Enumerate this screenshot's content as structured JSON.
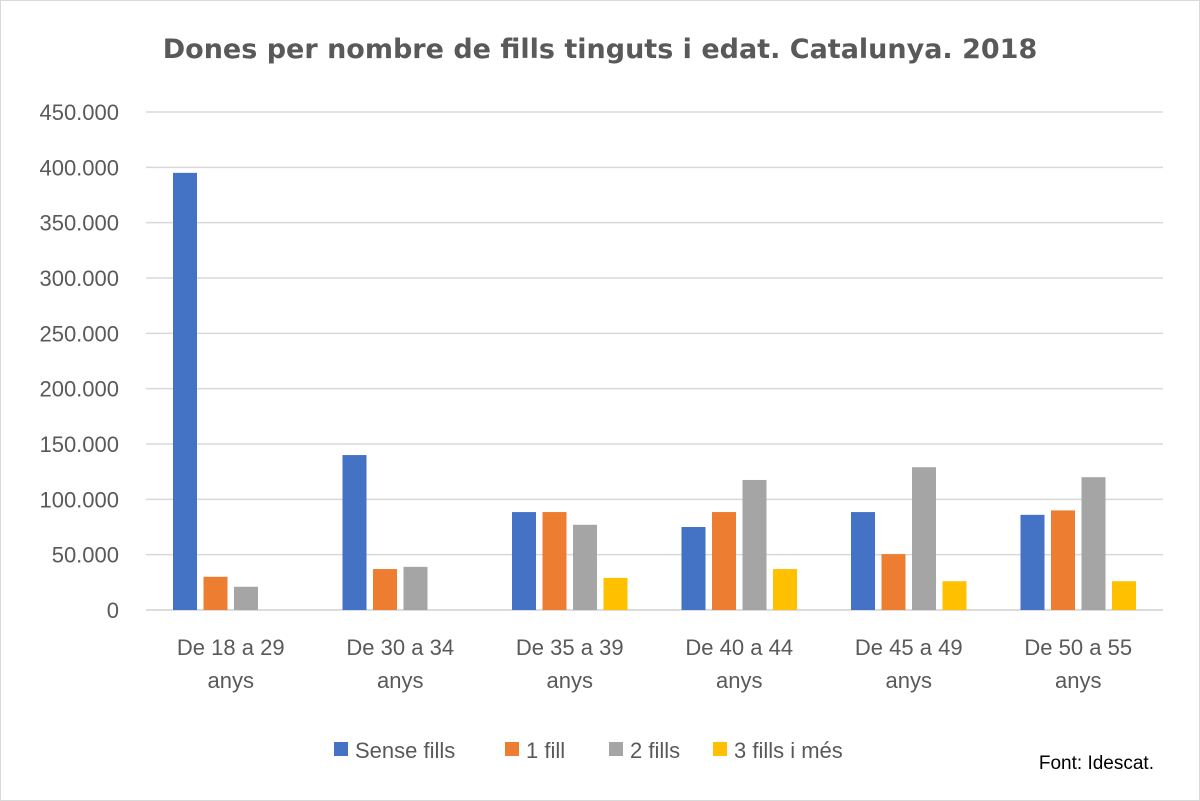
{
  "chart_data": {
    "type": "bar",
    "title": "Dones per nombre de fills tinguts i edat. Catalunya. 2018",
    "xlabel": "",
    "ylabel": "",
    "ylim": [
      0,
      450000
    ],
    "yticks": [
      0,
      50000,
      100000,
      150000,
      200000,
      250000,
      300000,
      350000,
      400000,
      450000
    ],
    "ytick_labels": [
      "0",
      "50.000",
      "100.000",
      "150.000",
      "200.000",
      "250.000",
      "300.000",
      "350.000",
      "400.000",
      "450.000"
    ],
    "grid": true,
    "legend_position": "bottom",
    "categories": [
      [
        "De 18 a 29",
        "anys"
      ],
      [
        "De 30 a 34",
        "anys"
      ],
      [
        "De 35 a 39",
        "anys"
      ],
      [
        "De 40 a 44",
        "anys"
      ],
      [
        "De 45 a 49",
        "anys"
      ],
      [
        "De 50 a 55",
        "anys"
      ]
    ],
    "series": [
      {
        "name": "Sense fills",
        "color": "#4472C4",
        "values": [
          395000,
          140000,
          88500,
          75000,
          88500,
          86000
        ]
      },
      {
        "name": "1 fill",
        "color": "#ED7D31",
        "values": [
          30000,
          37000,
          88500,
          88500,
          50500,
          90000
        ]
      },
      {
        "name": "2 fills",
        "color": "#A5A5A5",
        "values": [
          21000,
          39000,
          77000,
          117500,
          129000,
          120000
        ]
      },
      {
        "name": "3 fills i més",
        "color": "#FFC000",
        "values": [
          0,
          0,
          29000,
          37000,
          26000,
          26000
        ]
      }
    ],
    "source": "Font: Idescat."
  }
}
